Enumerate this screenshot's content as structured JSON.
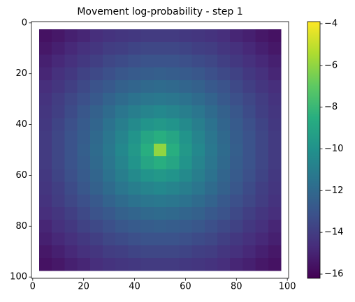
{
  "chart_data": {
    "type": "heatmap",
    "title": "Movement log-probability - step 1",
    "colormap": "viridis",
    "x": [
      5,
      10,
      15,
      20,
      25,
      30,
      35,
      40,
      45,
      50,
      55,
      60,
      65,
      70,
      75,
      80,
      85,
      90,
      95
    ],
    "y": [
      5,
      10,
      15,
      20,
      25,
      30,
      35,
      40,
      45,
      50,
      55,
      60,
      65,
      70,
      75,
      80,
      85,
      90,
      95
    ],
    "z": [
      [
        -15.6,
        -15.4,
        -15.1,
        -14.9,
        -14.6,
        -14.4,
        -14.3,
        -14.2,
        -14.1,
        -14.1,
        -14.1,
        -14.2,
        -14.3,
        -14.4,
        -14.6,
        -14.9,
        -15.1,
        -15.4,
        -15.6
      ],
      [
        -15.4,
        -15.1,
        -14.8,
        -14.5,
        -14.3,
        -14.0,
        -13.9,
        -13.7,
        -13.6,
        -13.6,
        -13.6,
        -13.7,
        -13.9,
        -14.0,
        -14.3,
        -14.5,
        -14.8,
        -15.1,
        -15.4
      ],
      [
        -15.1,
        -14.8,
        -14.5,
        -14.2,
        -13.9,
        -13.6,
        -13.4,
        -13.2,
        -13.1,
        -13.1,
        -13.1,
        -13.2,
        -13.4,
        -13.6,
        -13.9,
        -14.2,
        -14.5,
        -14.8,
        -15.1
      ],
      [
        -14.9,
        -14.5,
        -14.2,
        -13.8,
        -13.5,
        -13.2,
        -12.9,
        -12.7,
        -12.6,
        -12.5,
        -12.6,
        -12.7,
        -12.9,
        -13.2,
        -13.5,
        -13.8,
        -14.2,
        -14.5,
        -14.9
      ],
      [
        -14.6,
        -14.3,
        -13.9,
        -13.5,
        -13.1,
        -12.8,
        -12.4,
        -12.2,
        -12.0,
        -11.9,
        -12.0,
        -12.2,
        -12.4,
        -12.8,
        -13.1,
        -13.5,
        -13.9,
        -14.3,
        -14.6
      ],
      [
        -14.4,
        -14.0,
        -13.6,
        -13.2,
        -12.8,
        -12.3,
        -11.9,
        -11.6,
        -11.4,
        -11.3,
        -11.4,
        -11.6,
        -11.9,
        -12.3,
        -12.8,
        -13.2,
        -13.6,
        -14.0,
        -14.4
      ],
      [
        -14.3,
        -13.9,
        -13.4,
        -12.9,
        -12.4,
        -11.9,
        -11.4,
        -11.0,
        -10.7,
        -10.5,
        -10.7,
        -11.0,
        -11.4,
        -11.9,
        -12.4,
        -12.9,
        -13.4,
        -13.9,
        -14.3
      ],
      [
        -14.2,
        -13.7,
        -13.2,
        -12.7,
        -12.2,
        -11.6,
        -11.0,
        -10.4,
        -9.9,
        -9.7,
        -9.9,
        -10.4,
        -11.0,
        -11.6,
        -12.2,
        -12.7,
        -13.2,
        -13.7,
        -14.2
      ],
      [
        -14.1,
        -13.6,
        -13.1,
        -12.6,
        -12.0,
        -11.4,
        -10.7,
        -9.9,
        -9.0,
        -8.5,
        -9.0,
        -9.9,
        -10.7,
        -11.4,
        -12.0,
        -12.6,
        -13.1,
        -13.6,
        -14.1
      ],
      [
        -14.1,
        -13.6,
        -13.1,
        -12.5,
        -11.9,
        -11.3,
        -10.5,
        -9.7,
        -8.5,
        -6.0,
        -8.5,
        -9.7,
        -10.5,
        -11.3,
        -11.9,
        -12.5,
        -13.1,
        -13.6,
        -14.1
      ],
      [
        -14.1,
        -13.6,
        -13.1,
        -12.6,
        -12.0,
        -11.4,
        -10.7,
        -9.9,
        -9.0,
        -8.5,
        -9.0,
        -9.9,
        -10.7,
        -11.4,
        -12.0,
        -12.6,
        -13.1,
        -13.6,
        -14.1
      ],
      [
        -14.2,
        -13.7,
        -13.2,
        -12.7,
        -12.2,
        -11.6,
        -11.0,
        -10.4,
        -9.9,
        -9.7,
        -9.9,
        -10.4,
        -11.0,
        -11.6,
        -12.2,
        -12.7,
        -13.2,
        -13.7,
        -14.2
      ],
      [
        -14.3,
        -13.9,
        -13.4,
        -12.9,
        -12.4,
        -11.9,
        -11.4,
        -11.0,
        -10.7,
        -10.5,
        -10.7,
        -11.0,
        -11.4,
        -11.9,
        -12.4,
        -12.9,
        -13.4,
        -13.9,
        -14.3
      ],
      [
        -14.4,
        -14.0,
        -13.6,
        -13.2,
        -12.8,
        -12.3,
        -11.9,
        -11.6,
        -11.4,
        -11.3,
        -11.4,
        -11.6,
        -11.9,
        -12.3,
        -12.8,
        -13.2,
        -13.6,
        -14.0,
        -14.4
      ],
      [
        -14.6,
        -14.3,
        -13.9,
        -13.5,
        -13.1,
        -12.8,
        -12.4,
        -12.2,
        -12.0,
        -11.9,
        -12.0,
        -12.2,
        -12.4,
        -12.8,
        -13.1,
        -13.5,
        -13.9,
        -14.3,
        -14.6
      ],
      [
        -14.9,
        -14.5,
        -14.2,
        -13.8,
        -13.5,
        -13.2,
        -12.9,
        -12.7,
        -12.6,
        -12.5,
        -12.6,
        -12.7,
        -12.9,
        -13.2,
        -13.5,
        -13.8,
        -14.2,
        -14.5,
        -14.9
      ],
      [
        -15.1,
        -14.8,
        -14.5,
        -14.2,
        -13.9,
        -13.6,
        -13.4,
        -13.2,
        -13.1,
        -13.1,
        -13.1,
        -13.2,
        -13.4,
        -13.6,
        -13.9,
        -14.2,
        -14.5,
        -14.8,
        -15.1
      ],
      [
        -15.4,
        -15.1,
        -14.8,
        -14.5,
        -14.3,
        -14.0,
        -13.9,
        -13.7,
        -13.6,
        -13.6,
        -13.6,
        -13.7,
        -13.9,
        -14.0,
        -14.3,
        -14.5,
        -14.8,
        -15.1,
        -15.4
      ],
      [
        -15.6,
        -15.4,
        -15.1,
        -14.9,
        -14.6,
        -14.4,
        -14.3,
        -14.2,
        -14.1,
        -14.1,
        -14.1,
        -14.2,
        -14.3,
        -14.4,
        -14.6,
        -14.9,
        -15.1,
        -15.4,
        -15.6
      ]
    ],
    "xlim": [
      -0.5,
      100.5
    ],
    "ylim": [
      100.5,
      -0.5
    ],
    "xticks": [
      0,
      20,
      40,
      60,
      80,
      100
    ],
    "yticks": [
      0,
      20,
      40,
      60,
      80,
      100
    ],
    "clim": [
      -16.2,
      -3.9
    ],
    "cticks": [
      {
        "value": -16,
        "label": "−16"
      },
      {
        "value": -14,
        "label": "−14"
      },
      {
        "value": -12,
        "label": "−12"
      },
      {
        "value": -10,
        "label": "−10"
      },
      {
        "value": -8,
        "label": "−8"
      },
      {
        "value": -6,
        "label": "−6"
      },
      {
        "value": -4,
        "label": "−4"
      }
    ]
  }
}
